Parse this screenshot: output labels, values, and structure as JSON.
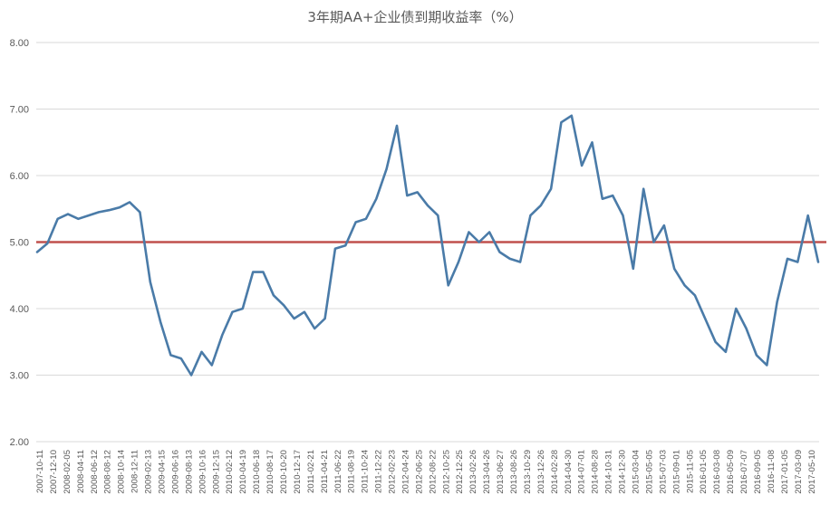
{
  "chart_data": {
    "type": "line",
    "title": "3年期AA+企业债到期收益率（%）",
    "xlabel": "",
    "ylabel": "",
    "ylim": [
      2.0,
      8.0
    ],
    "yticks": [
      "2.00",
      "3.00",
      "4.00",
      "5.00",
      "6.00",
      "7.00",
      "8.00"
    ],
    "grid": true,
    "legend": "none",
    "x_tick_labels": [
      "2007-10-11",
      "2007-12-10",
      "2008-02-05",
      "2008-04-11",
      "2008-06-12",
      "2008-08-12",
      "2008-10-14",
      "2008-12-11",
      "2009-02-13",
      "2009-04-15",
      "2009-06-16",
      "2009-08-13",
      "2009-10-16",
      "2009-12-15",
      "2010-02-12",
      "2010-04-19",
      "2010-06-18",
      "2010-08-17",
      "2010-10-20",
      "2010-12-17",
      "2011-02-21",
      "2011-04-21",
      "2011-06-22",
      "2011-08-19",
      "2011-10-24",
      "2011-12-22",
      "2012-02-23",
      "2012-04-24",
      "2012-06-25",
      "2012-08-22",
      "2012-10-25",
      "2012-12-25",
      "2013-02-26",
      "2013-04-26",
      "2013-06-27",
      "2013-08-26",
      "2013-10-29",
      "2013-12-26",
      "2014-02-28",
      "2014-04-30",
      "2014-07-01",
      "2014-08-28",
      "2014-10-31",
      "2014-12-30",
      "2015-03-04",
      "2015-05-05",
      "2015-07-03",
      "2015-09-01",
      "2015-11-05",
      "2016-01-05",
      "2016-03-08",
      "2016-05-09",
      "2016-07-07",
      "2016-09-05",
      "2016-11-08",
      "2017-01-05",
      "2017-03-09",
      "2017-05-10"
    ],
    "series": [
      {
        "name": "",
        "color": "#4a7ba8",
        "values": [
          4.85,
          4.98,
          5.35,
          5.42,
          5.35,
          5.4,
          5.45,
          5.48,
          5.52,
          5.6,
          5.45,
          4.4,
          3.8,
          3.3,
          3.25,
          3.0,
          3.35,
          3.15,
          3.6,
          3.95,
          4.0,
          4.55,
          4.55,
          4.2,
          4.05,
          3.85,
          3.95,
          3.7,
          3.85,
          4.9,
          4.95,
          5.3,
          5.35,
          5.65,
          6.1,
          6.75,
          5.7,
          5.75,
          5.55,
          5.4,
          4.35,
          4.7,
          5.15,
          5.0,
          5.15,
          4.85,
          4.75,
          4.7,
          5.4,
          5.55,
          5.8,
          6.8,
          6.9,
          6.15,
          6.5,
          5.65,
          5.7,
          5.4,
          4.6,
          5.8,
          5.0,
          5.25,
          4.6,
          4.35,
          4.2,
          3.85,
          3.5,
          3.35,
          4.0,
          3.7,
          3.3,
          3.15,
          4.1,
          4.75,
          4.7,
          5.4,
          4.7
        ]
      }
    ],
    "reference_line": {
      "y": 5.0,
      "color": "#c0504d"
    }
  }
}
